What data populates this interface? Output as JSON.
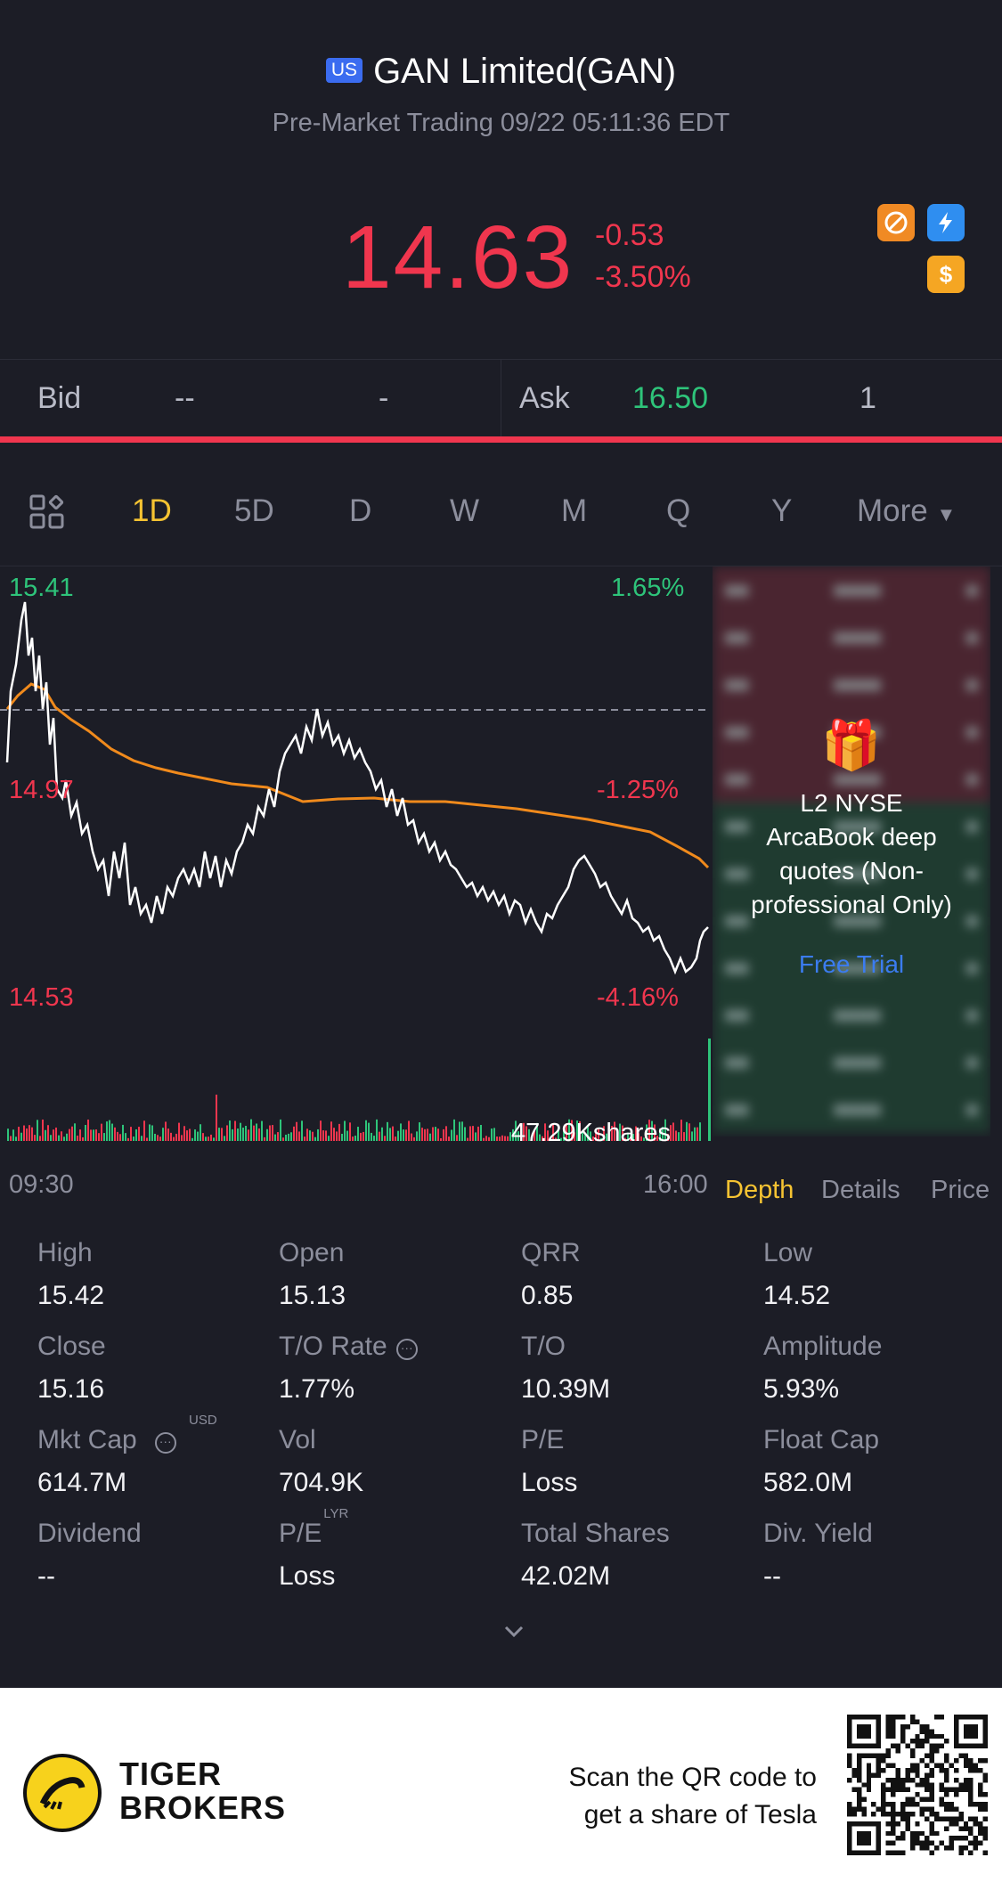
{
  "header": {
    "market_badge": "US",
    "title": "GAN Limited(GAN)",
    "subtitle": "Pre-Market Trading 09/22 05:11:36 EDT",
    "price": "14.63",
    "change": "-0.53",
    "change_pct": "-3.50%"
  },
  "bidask": {
    "bid_label": "Bid",
    "bid_price": "--",
    "bid_size": "-",
    "ask_label": "Ask",
    "ask_price": "16.50",
    "ask_size": "1"
  },
  "periods": [
    "1D",
    "5D",
    "D",
    "W",
    "M",
    "Q",
    "Y",
    "More"
  ],
  "active_period": "1D",
  "chart": {
    "y_top": "15.41",
    "y_mid": "14.97",
    "y_bottom": "14.53",
    "pct_top": "1.65%",
    "pct_mid": "-1.25%",
    "pct_bottom": "-4.16%",
    "volume_label": "47.29Kshares",
    "time_start": "09:30",
    "time_end": "16:00"
  },
  "depth": {
    "promo_text": "L2 NYSE ArcaBook deep quotes (Non-professional Only)",
    "free_trial": "Free Trial",
    "tabs": [
      "Depth",
      "Details",
      "Price"
    ]
  },
  "stats": [
    {
      "label": "High",
      "value": "15.42"
    },
    {
      "label": "Open",
      "value": "15.13"
    },
    {
      "label": "QRR",
      "value": "0.85"
    },
    {
      "label": "Low",
      "value": "14.52"
    },
    {
      "label": "Close",
      "value": "15.16"
    },
    {
      "label": "T/O Rate",
      "value": "1.77%"
    },
    {
      "label": "T/O",
      "value": "10.39M"
    },
    {
      "label": "Amplitude",
      "value": "5.93%"
    },
    {
      "label": "Mkt Cap",
      "value": "614.7M",
      "sup": "USD"
    },
    {
      "label": "Vol",
      "value": "704.9K"
    },
    {
      "label": "P/E",
      "value": "Loss"
    },
    {
      "label": "Float Cap",
      "value": "582.0M"
    },
    {
      "label": "Dividend",
      "value": "--"
    },
    {
      "label": "P/E",
      "value": "Loss",
      "sup": "LYR"
    },
    {
      "label": "Total Shares",
      "value": "42.02M"
    },
    {
      "label": "Div. Yield",
      "value": "--"
    }
  ],
  "footer": {
    "brand_line1": "TIGER",
    "brand_line2": "BROKERS",
    "scan_line1": "Scan the QR code to",
    "scan_line2": "get a share of Tesla"
  },
  "colors": {
    "background": "#1c1d26",
    "down": "#f0364e",
    "up": "#2ec47a",
    "active": "#f5c332",
    "link": "#3b7cf0",
    "avg_line": "#f08a1c"
  }
}
